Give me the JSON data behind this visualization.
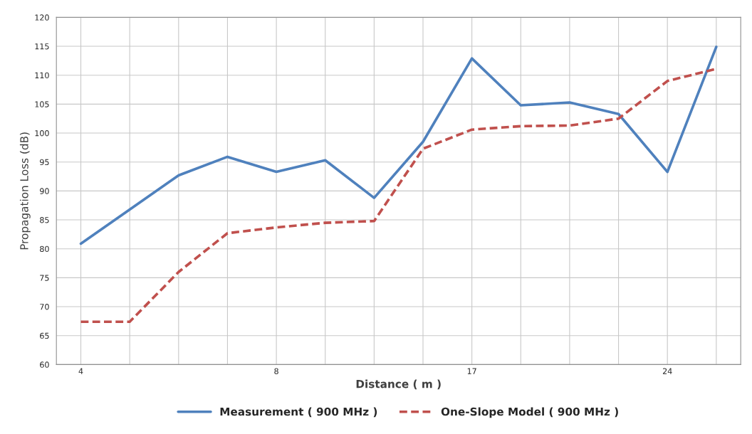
{
  "chart_data": {
    "type": "line",
    "xlabel": "Distance ( m )",
    "ylabel": "Propagation Loss (dB)",
    "categories": [
      "4",
      null,
      null,
      null,
      "8",
      null,
      null,
      null,
      "17",
      null,
      null,
      null,
      "24",
      null
    ],
    "series": [
      {
        "name": "Measurement ( 900 MHz )",
        "color": "#4f81bd",
        "line_style": "solid",
        "values": [
          80.9,
          86.8,
          92.7,
          95.9,
          93.3,
          95.3,
          88.8,
          98.5,
          112.9,
          104.8,
          105.3,
          103.3,
          93.3,
          114.9
        ]
      },
      {
        "name": "One-Slope Model ( 900 MHz )",
        "color": "#c0504d",
        "line_style": "dashed",
        "values": [
          67.4,
          67.4,
          76.0,
          82.7,
          83.7,
          84.5,
          84.8,
          97.3,
          100.6,
          101.2,
          101.3,
          102.5,
          109.0,
          111.1
        ]
      }
    ],
    "ylim": [
      60,
      120
    ],
    "yticks": [
      60,
      65,
      70,
      75,
      80,
      85,
      90,
      95,
      100,
      105,
      110,
      115,
      120
    ],
    "grid": true,
    "legend": "bottom",
    "marker": "none"
  }
}
